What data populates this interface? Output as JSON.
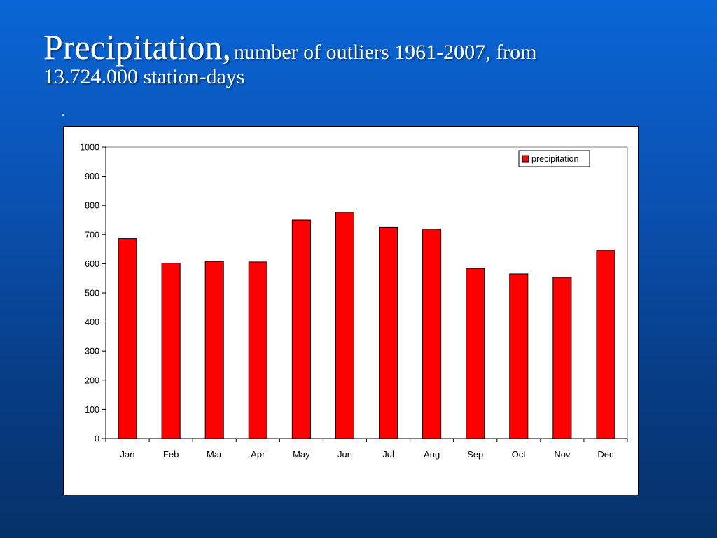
{
  "slide": {
    "title_main": "Precipitation,",
    "title_sub": "number of outliers 1961-2007, from",
    "title_line2": "13.724.000 station-days",
    "dot": "."
  },
  "colors": {
    "bar_fill": "#ff0000",
    "bar_stroke": "#000000",
    "background_top": "#0a66d6",
    "background_bottom": "#063269"
  },
  "chart_data": {
    "type": "bar",
    "categories": [
      "Jan",
      "Feb",
      "Mar",
      "Apr",
      "May",
      "Jun",
      "Jul",
      "Aug",
      "Sep",
      "Oct",
      "Nov",
      "Dec"
    ],
    "series": [
      {
        "name": "precipitation",
        "values": [
          686,
          602,
          608,
          606,
          750,
          777,
          725,
          717,
          584,
          565,
          553,
          645
        ]
      }
    ],
    "yticks": [
      0,
      100,
      200,
      300,
      400,
      500,
      600,
      700,
      800,
      900,
      1000
    ],
    "ylim": [
      0,
      1000
    ],
    "grid": false,
    "legend": "top-right"
  }
}
